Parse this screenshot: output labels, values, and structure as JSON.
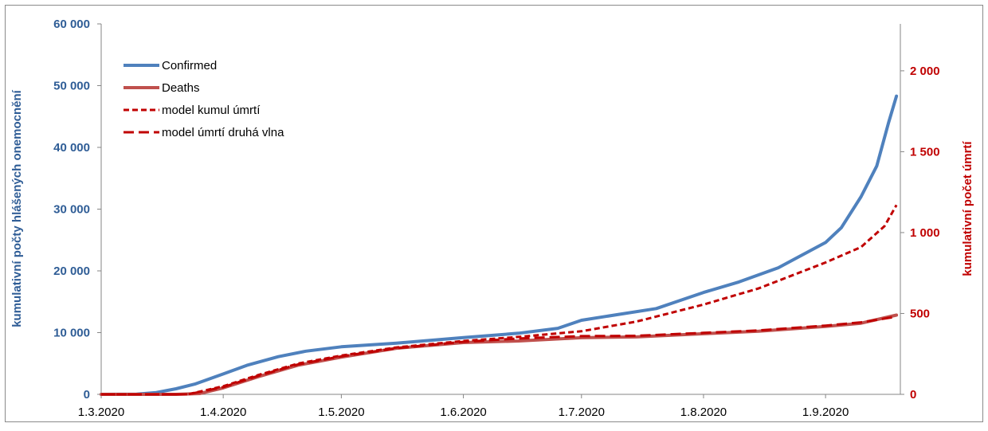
{
  "chart_data": {
    "type": "line",
    "x_ticks": [
      "1.3.2020",
      "1.4.2020",
      "1.5.2020",
      "1.6.2020",
      "1.7.2020",
      "1.8.2020",
      "1.9.2020"
    ],
    "x_range": [
      "2020-03-01",
      "2020-09-20"
    ],
    "y_left": {
      "label": "kumulativní počty hlášených onemocnění",
      "range": [
        0,
        60000
      ],
      "ticks": [
        0,
        10000,
        20000,
        30000,
        40000,
        50000,
        60000
      ],
      "tick_labels": [
        "0",
        "10 000",
        "20 000",
        "30 000",
        "40 000",
        "50 000",
        "60 000"
      ],
      "color": "#2f5d96"
    },
    "y_right": {
      "label": "kumulativní počet úmrtí",
      "range": [
        0,
        2290
      ],
      "ticks": [
        0,
        500,
        1000,
        1500,
        2000
      ],
      "tick_labels": [
        "0",
        "500",
        "1 000",
        "1 500",
        "2 000"
      ],
      "color": "#c00000"
    },
    "grid": false,
    "legend_position": "top-left",
    "series": [
      {
        "name": "Confirmed",
        "axis": "left",
        "color": "#4f81bd",
        "style": "solid",
        "points": [
          [
            "2020-03-01",
            0
          ],
          [
            "2020-03-10",
            30
          ],
          [
            "2020-03-15",
            300
          ],
          [
            "2020-03-20",
            900
          ],
          [
            "2020-03-25",
            1700
          ],
          [
            "2020-04-01",
            3300
          ],
          [
            "2020-04-07",
            4700
          ],
          [
            "2020-04-15",
            6100
          ],
          [
            "2020-04-22",
            7000
          ],
          [
            "2020-05-01",
            7700
          ],
          [
            "2020-05-15",
            8300
          ],
          [
            "2020-06-01",
            9200
          ],
          [
            "2020-06-15",
            9900
          ],
          [
            "2020-06-25",
            10700
          ],
          [
            "2020-07-01",
            12000
          ],
          [
            "2020-07-10",
            12900
          ],
          [
            "2020-07-20",
            13900
          ],
          [
            "2020-08-01",
            16500
          ],
          [
            "2020-08-10",
            18200
          ],
          [
            "2020-08-20",
            20500
          ],
          [
            "2020-08-25",
            22200
          ],
          [
            "2020-09-01",
            24600
          ],
          [
            "2020-09-05",
            27000
          ],
          [
            "2020-09-10",
            32000
          ],
          [
            "2020-09-14",
            37000
          ],
          [
            "2020-09-17",
            44000
          ],
          [
            "2020-09-19",
            48300
          ]
        ]
      },
      {
        "name": "Deaths",
        "axis": "right",
        "color": "#c0504d",
        "style": "solid",
        "points": [
          [
            "2020-03-01",
            0
          ],
          [
            "2020-03-20",
            0
          ],
          [
            "2020-03-26",
            5
          ],
          [
            "2020-04-01",
            40
          ],
          [
            "2020-04-10",
            110
          ],
          [
            "2020-04-20",
            180
          ],
          [
            "2020-05-01",
            230
          ],
          [
            "2020-05-15",
            285
          ],
          [
            "2020-06-01",
            320
          ],
          [
            "2020-06-15",
            330
          ],
          [
            "2020-07-01",
            350
          ],
          [
            "2020-07-15",
            355
          ],
          [
            "2020-08-01",
            375
          ],
          [
            "2020-08-15",
            390
          ],
          [
            "2020-09-01",
            420
          ],
          [
            "2020-09-10",
            440
          ],
          [
            "2020-09-19",
            490
          ]
        ]
      },
      {
        "name": "model kumul úmrtí",
        "axis": "right",
        "color": "#c00000",
        "style": "short-dash",
        "points": [
          [
            "2020-03-01",
            0
          ],
          [
            "2020-03-23",
            0
          ],
          [
            "2020-04-01",
            50
          ],
          [
            "2020-04-10",
            120
          ],
          [
            "2020-04-20",
            190
          ],
          [
            "2020-05-01",
            240
          ],
          [
            "2020-05-15",
            290
          ],
          [
            "2020-06-01",
            330
          ],
          [
            "2020-06-15",
            355
          ],
          [
            "2020-07-01",
            390
          ],
          [
            "2020-07-15",
            450
          ],
          [
            "2020-08-01",
            555
          ],
          [
            "2020-08-15",
            655
          ],
          [
            "2020-09-01",
            815
          ],
          [
            "2020-09-10",
            910
          ],
          [
            "2020-09-16",
            1040
          ],
          [
            "2020-09-19",
            1170
          ]
        ]
      },
      {
        "name": "model úmrtí druhá vlna",
        "axis": "right",
        "color": "#c00000",
        "style": "long-dash",
        "points": [
          [
            "2020-03-01",
            0
          ],
          [
            "2020-03-23",
            0
          ],
          [
            "2020-04-01",
            45
          ],
          [
            "2020-04-10",
            115
          ],
          [
            "2020-04-20",
            185
          ],
          [
            "2020-05-01",
            235
          ],
          [
            "2020-05-15",
            285
          ],
          [
            "2020-06-01",
            325
          ],
          [
            "2020-06-15",
            345
          ],
          [
            "2020-07-01",
            360
          ],
          [
            "2020-07-15",
            362
          ],
          [
            "2020-08-01",
            380
          ],
          [
            "2020-08-15",
            395
          ],
          [
            "2020-09-01",
            425
          ],
          [
            "2020-09-10",
            445
          ],
          [
            "2020-09-19",
            480
          ]
        ]
      }
    ]
  }
}
